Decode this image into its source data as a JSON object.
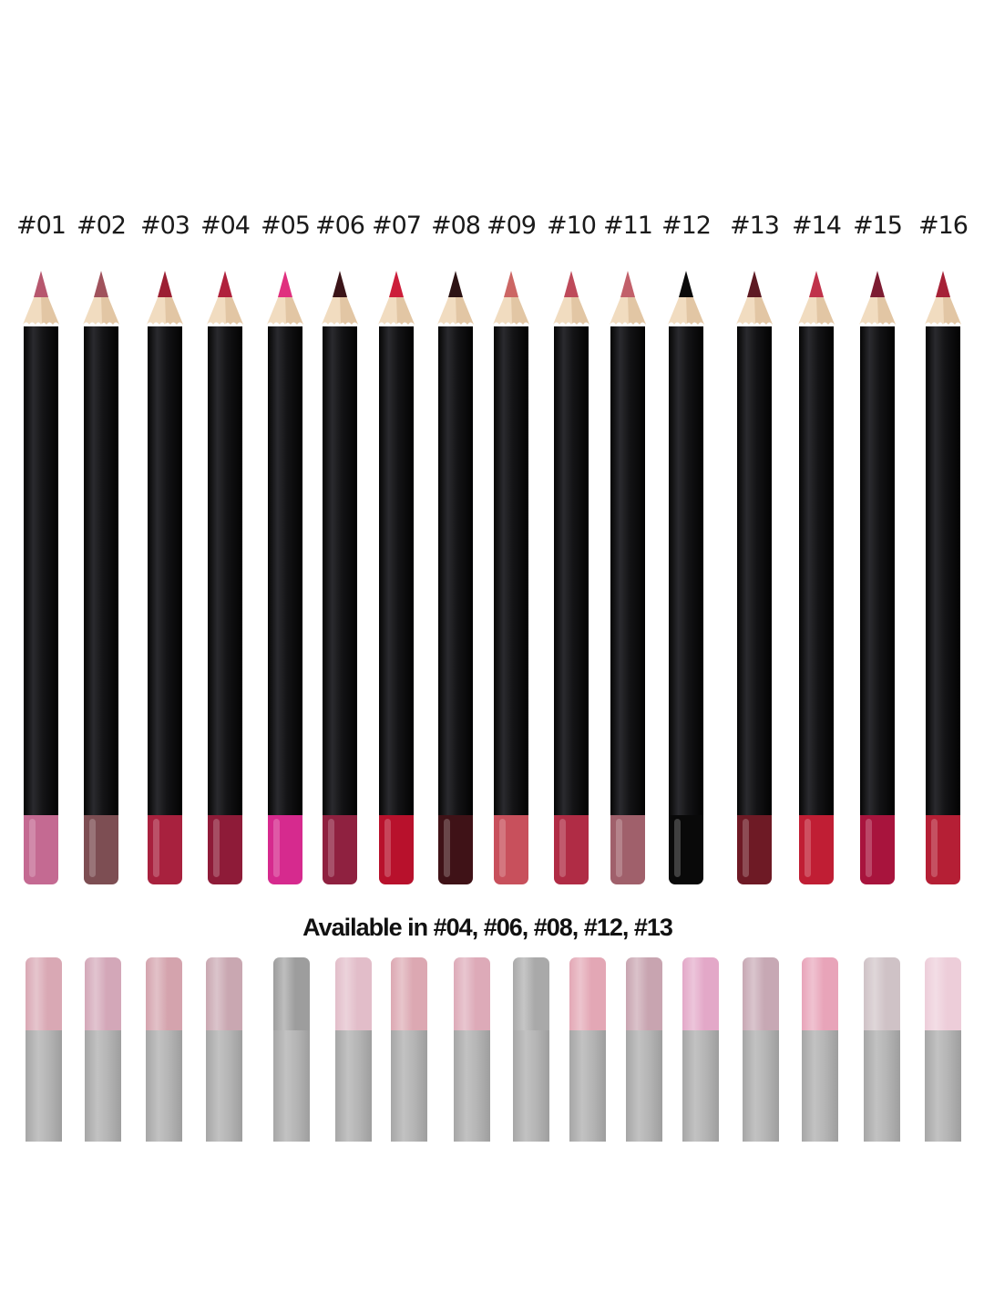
{
  "shades": [
    {
      "label": "#01",
      "lead": "#b7576e",
      "cap": "#c46a92"
    },
    {
      "label": "#02",
      "lead": "#a0525c",
      "cap": "#7d4e53"
    },
    {
      "label": "#03",
      "lead": "#9c1f33",
      "cap": "#a8213e"
    },
    {
      "label": "#04",
      "lead": "#b0213c",
      "cap": "#8e1b38"
    },
    {
      "label": "#05",
      "lead": "#e0307f",
      "cap": "#d62a8e"
    },
    {
      "label": "#06",
      "lead": "#3b1418",
      "cap": "#8f2140"
    },
    {
      "label": "#07",
      "lead": "#cc1e3a",
      "cap": "#b8112c"
    },
    {
      "label": "#08",
      "lead": "#2d1314",
      "cap": "#3f1217"
    },
    {
      "label": "#09",
      "lead": "#cc6664",
      "cap": "#c8505c"
    },
    {
      "label": "#10",
      "lead": "#be4a5a",
      "cap": "#b02c45"
    },
    {
      "label": "#11",
      "lead": "#c2606a",
      "cap": "#a0606b"
    },
    {
      "label": "#12",
      "lead": "#0a0a0a",
      "cap": "#090909"
    },
    {
      "label": "#13",
      "lead": "#5e1a23",
      "cap": "#6e1a25"
    },
    {
      "label": "#14",
      "lead": "#c0324a",
      "cap": "#c01e34"
    },
    {
      "label": "#15",
      "lead": "#7d1c32",
      "cap": "#a8143d"
    },
    {
      "label": "#16",
      "lead": "#a62136",
      "cap": "#b51f35"
    }
  ],
  "availability_note": "Available in #04, #06, #08, #12, #13",
  "faded_caps": [
    "#d9a8b4",
    "#d3a7b8",
    "#d4a3ad",
    "#c9a7b1",
    "#9d9d9d",
    "#e2bdc9",
    "#dca8b2",
    "#ddaab8",
    "#a9a9a9",
    "#e3a7b5",
    "#c8a4b0",
    "#e3a8c8",
    "#c7a8b4",
    "#e8a4b9",
    "#cfc2c6",
    "#edcdd9"
  ]
}
